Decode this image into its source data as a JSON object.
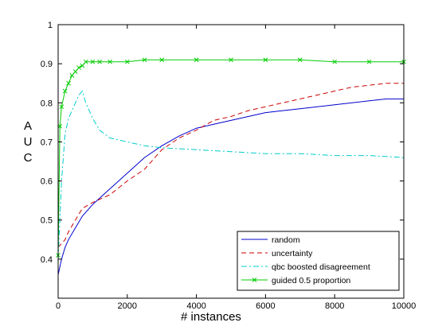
{
  "chart_data": {
    "type": "line",
    "title": "",
    "xlabel": "# instances",
    "ylabel": "A U C",
    "xlim": [
      0,
      10000
    ],
    "ylim": [
      0.3,
      1.0
    ],
    "x_ticks": [
      0,
      2000,
      4000,
      6000,
      8000,
      10000
    ],
    "x_tick_labels": [
      "0",
      "2000",
      "4000",
      "6000",
      "8000",
      "10000"
    ],
    "y_ticks": [
      0.4,
      0.5,
      0.6,
      0.7,
      0.8,
      0.9,
      1.0
    ],
    "y_tick_labels": [
      "0.4",
      "0.5",
      "0.6",
      "0.7",
      "0.8",
      "0.9",
      "1"
    ],
    "grid": false,
    "legend_position": "bottom-right",
    "series": [
      {
        "name": "random",
        "color": "#0000cc",
        "style": "solid",
        "marker": "none",
        "x": [
          0,
          100,
          200,
          300,
          500,
          700,
          1000,
          1500,
          2000,
          2500,
          3000,
          3500,
          4000,
          4500,
          5000,
          5500,
          6000,
          6500,
          7000,
          7500,
          8000,
          8500,
          9000,
          9500,
          10000
        ],
        "y": [
          0.36,
          0.4,
          0.43,
          0.45,
          0.48,
          0.51,
          0.54,
          0.58,
          0.62,
          0.66,
          0.69,
          0.715,
          0.735,
          0.745,
          0.755,
          0.765,
          0.775,
          0.78,
          0.785,
          0.79,
          0.795,
          0.8,
          0.805,
          0.81,
          0.81
        ]
      },
      {
        "name": "uncertainty",
        "color": "#cc0000",
        "style": "dashed",
        "marker": "none",
        "x": [
          0,
          100,
          200,
          300,
          500,
          700,
          1000,
          1500,
          2000,
          2500,
          3000,
          3500,
          4000,
          4500,
          5000,
          5500,
          6000,
          6500,
          7000,
          7500,
          8000,
          8500,
          9000,
          9500,
          10000
        ],
        "y": [
          0.43,
          0.44,
          0.45,
          0.47,
          0.5,
          0.53,
          0.545,
          0.565,
          0.6,
          0.63,
          0.68,
          0.71,
          0.73,
          0.755,
          0.765,
          0.78,
          0.79,
          0.8,
          0.81,
          0.82,
          0.83,
          0.84,
          0.845,
          0.85,
          0.85
        ]
      },
      {
        "name": "qbc boosted disagreement",
        "color": "#00cccc",
        "style": "dashdot",
        "marker": "none",
        "x": [
          0,
          100,
          200,
          300,
          400,
          500,
          600,
          700,
          800,
          1000,
          1200,
          1500,
          2000,
          2500,
          3000,
          4000,
          5000,
          6000,
          7000,
          8000,
          9000,
          10000
        ],
        "y": [
          0.4,
          0.6,
          0.72,
          0.76,
          0.78,
          0.8,
          0.82,
          0.83,
          0.8,
          0.76,
          0.73,
          0.71,
          0.7,
          0.69,
          0.685,
          0.68,
          0.675,
          0.67,
          0.67,
          0.665,
          0.665,
          0.66
        ]
      },
      {
        "name": "guided 0.5 proportion",
        "color": "#00cc00",
        "style": "solid",
        "marker": "x",
        "x": [
          0,
          50,
          100,
          200,
          300,
          400,
          500,
          600,
          700,
          800,
          1000,
          1200,
          1500,
          2000,
          2500,
          3000,
          4000,
          5000,
          6000,
          7000,
          8000,
          9000,
          10000
        ],
        "y": [
          0.41,
          0.74,
          0.79,
          0.83,
          0.85,
          0.87,
          0.88,
          0.89,
          0.895,
          0.905,
          0.905,
          0.905,
          0.905,
          0.905,
          0.91,
          0.91,
          0.91,
          0.91,
          0.91,
          0.91,
          0.905,
          0.905,
          0.905
        ]
      }
    ]
  }
}
